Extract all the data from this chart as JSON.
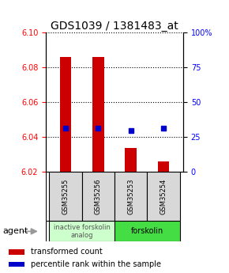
{
  "title": "GDS1039 / 1381483_at",
  "samples": [
    "GSM35255",
    "GSM35256",
    "GSM35253",
    "GSM35254"
  ],
  "bar_values": [
    6.086,
    6.086,
    6.034,
    6.026
  ],
  "blue_values": [
    6.045,
    6.045,
    6.044,
    6.045
  ],
  "bar_color": "#cc0000",
  "blue_color": "#0000cc",
  "ylim_left": [
    6.02,
    6.1
  ],
  "ylim_right": [
    0,
    100
  ],
  "yticks_left": [
    6.02,
    6.04,
    6.06,
    6.08,
    6.1
  ],
  "yticks_right": [
    0,
    25,
    50,
    75,
    100
  ],
  "ytick_labels_right": [
    "0",
    "25",
    "50",
    "75",
    "100%"
  ],
  "bar_width": 0.35,
  "group1_label": "inactive forskolin\nanalog",
  "group2_label": "forskolin",
  "group1_color": "#ccffcc",
  "group2_color": "#44dd44",
  "agent_label": "agent",
  "legend1": "transformed count",
  "legend2": "percentile rank within the sample",
  "bar_baseline": 6.02,
  "title_fontsize": 10,
  "tick_fontsize": 7,
  "sample_fontsize": 6,
  "group_fontsize": 7,
  "legend_fontsize": 7
}
